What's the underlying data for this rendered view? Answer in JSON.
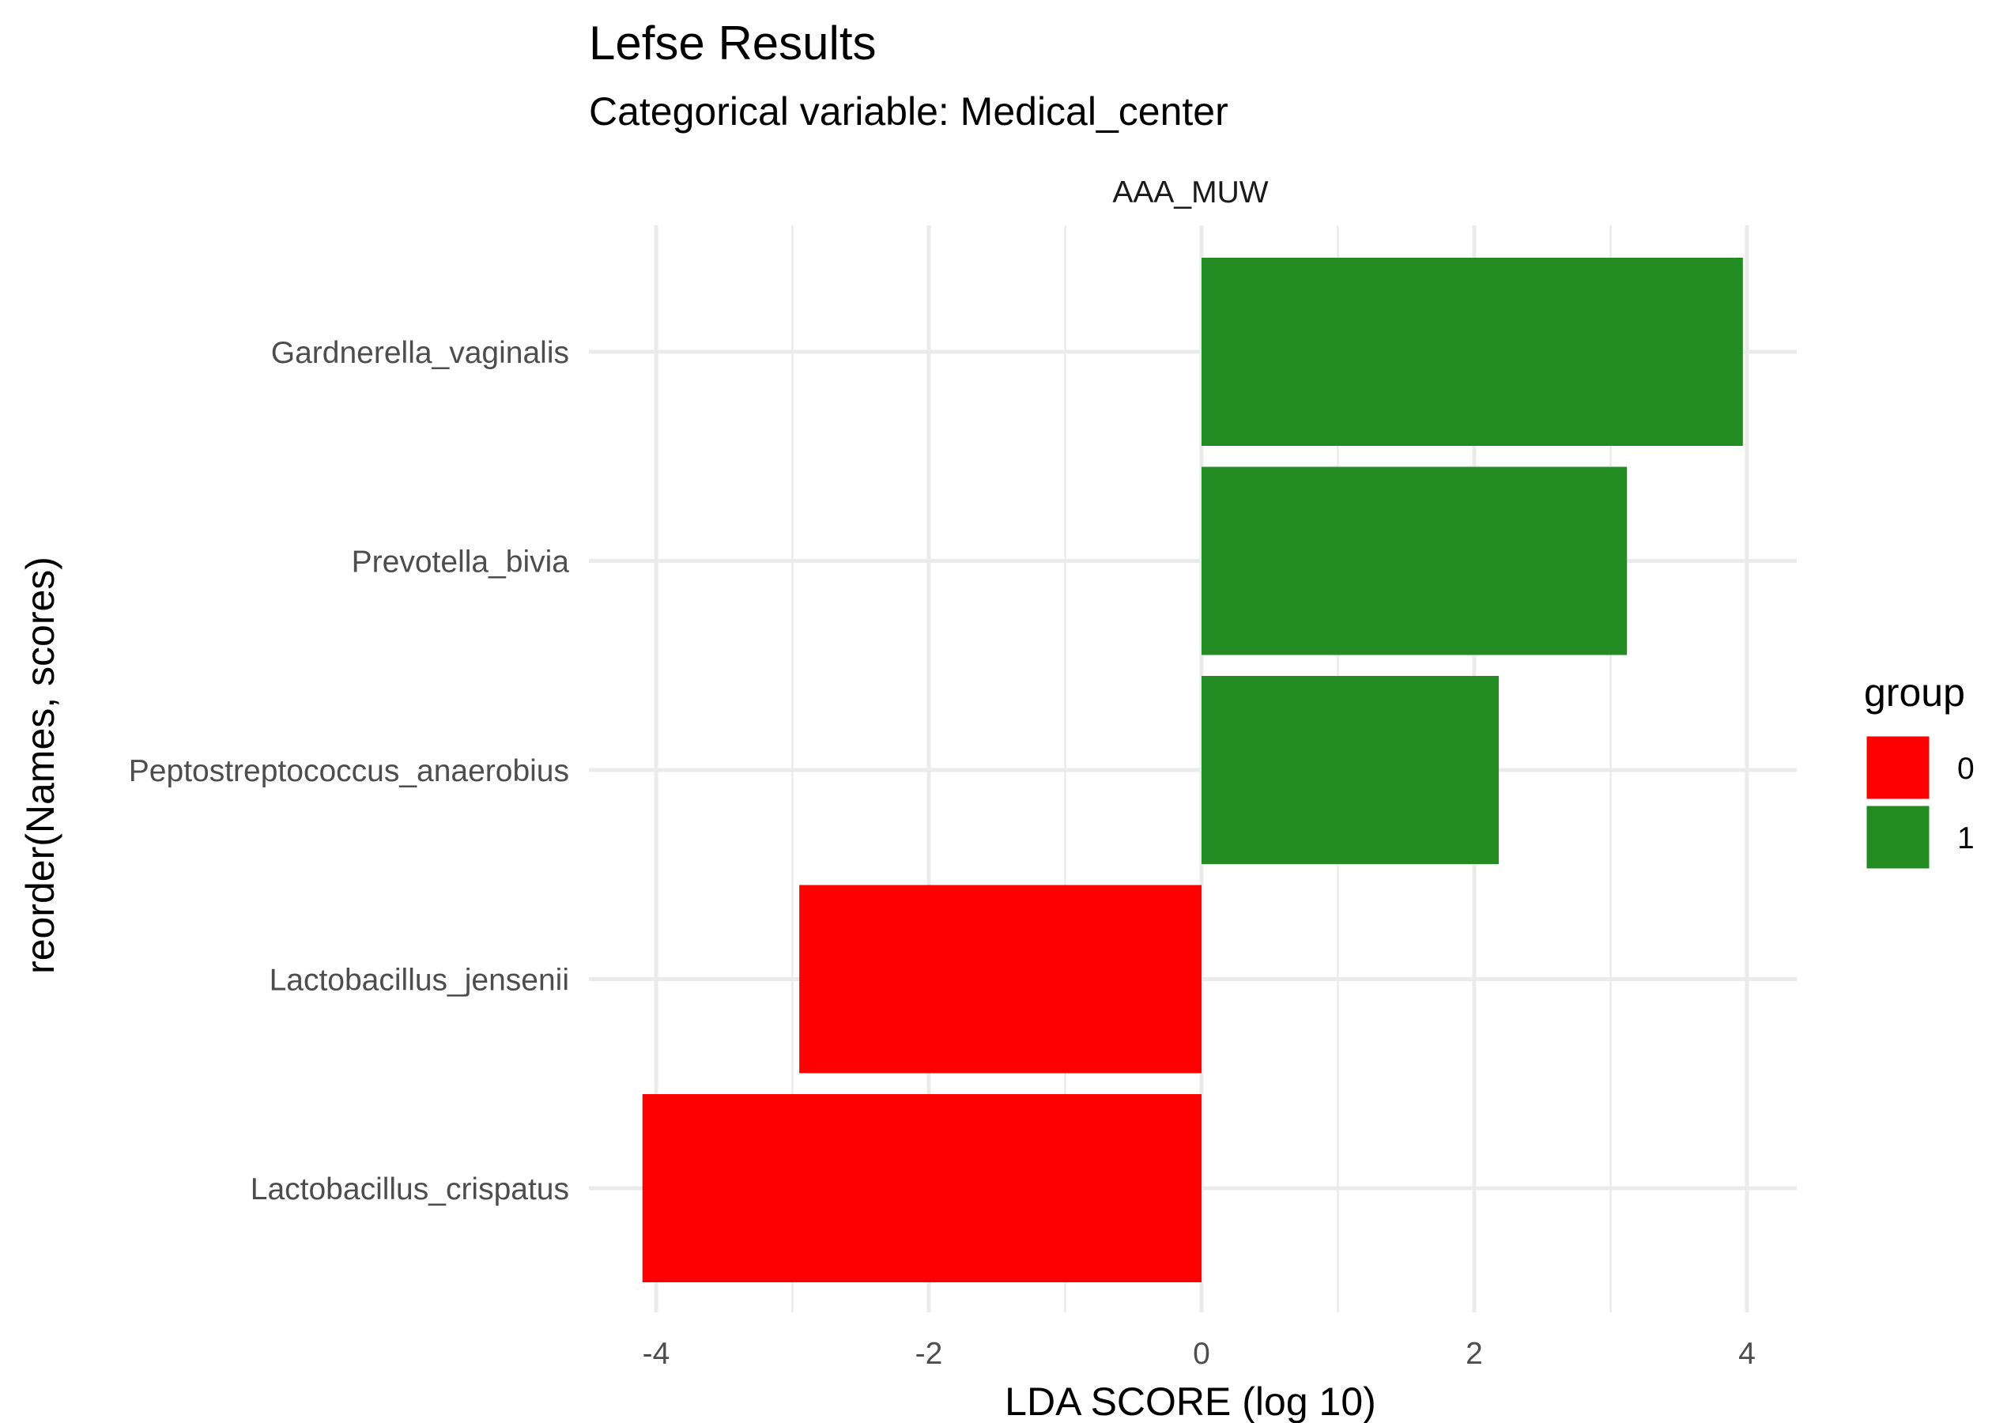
{
  "chart_data": {
    "type": "bar",
    "orientation": "horizontal",
    "title": "Lefse Results",
    "subtitle": "Categorical variable: Medical_center",
    "facet_label": "AAA_MUW",
    "xlabel": "LDA SCORE (log 10)",
    "ylabel": "reorder(Names, scores)",
    "xlim": [
      -4.4,
      4.4
    ],
    "x_ticks": [
      -4,
      -2,
      0,
      2,
      4
    ],
    "x_tick_labels": [
      "-4",
      "-2",
      "0",
      "2",
      "4"
    ],
    "grid": true,
    "legend": {
      "title": "group",
      "placement": "right",
      "entries": [
        {
          "label": "0",
          "color": "#FF0000"
        },
        {
          "label": "1",
          "color": "#228B22"
        }
      ]
    },
    "categories": [
      "Gardnerella_vaginalis",
      "Prevotella_bivia",
      "Peptostreptococcus_anaerobius",
      "Lactobacillus_jensenii",
      "Lactobacillus_crispatus"
    ],
    "values": [
      3.97,
      3.12,
      2.18,
      -2.95,
      -4.1
    ],
    "groups": [
      "1",
      "1",
      "1",
      "0",
      "0"
    ]
  }
}
